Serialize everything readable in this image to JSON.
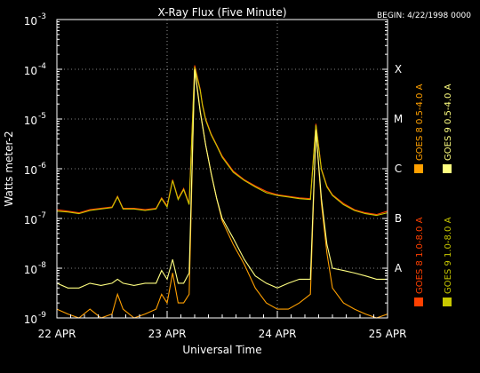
{
  "chart_data": {
    "type": "line",
    "title": "X-Ray Flux (Five Minute)",
    "begin_label": "BEGIN: 4/22/1998 0000",
    "ylabel": "Watts meter-2",
    "xlabel": "Universal Time",
    "y_scale": "log",
    "ylim": [
      1e-09,
      0.001
    ],
    "xlim": [
      0,
      3
    ],
    "y_ticks": [
      {
        "value": 0.001,
        "base": "10",
        "exp": "-3"
      },
      {
        "value": 0.0001,
        "base": "10",
        "exp": "-4"
      },
      {
        "value": 1e-05,
        "base": "10",
        "exp": "-5"
      },
      {
        "value": 1e-06,
        "base": "10",
        "exp": "-6"
      },
      {
        "value": 1e-07,
        "base": "10",
        "exp": "-7"
      },
      {
        "value": 1e-08,
        "base": "10",
        "exp": "-8"
      },
      {
        "value": 1e-09,
        "base": "10",
        "exp": "-9"
      }
    ],
    "x_ticks": [
      {
        "value": 0,
        "label": "22 APR"
      },
      {
        "value": 1,
        "label": "23 APR"
      },
      {
        "value": 2,
        "label": "24 APR"
      },
      {
        "value": 3,
        "label": "25 APR"
      }
    ],
    "flare_classes": [
      {
        "label": "X",
        "value": 0.0001
      },
      {
        "label": "M",
        "value": 1e-05
      },
      {
        "label": "C",
        "value": 1e-06
      },
      {
        "label": "B",
        "value": 1e-07
      },
      {
        "label": "A",
        "value": 1e-08
      }
    ],
    "grid": true,
    "legend_position": "right",
    "series": [
      {
        "name": "GOES 8 1.0-8.0 A",
        "color": "#ff4000",
        "x": [
          0,
          0.1,
          0.2,
          0.3,
          0.4,
          0.5,
          0.55,
          0.6,
          0.7,
          0.8,
          0.9,
          0.95,
          1.0,
          1.05,
          1.1,
          1.15,
          1.2,
          1.25,
          1.3,
          1.32,
          1.35,
          1.4,
          1.45,
          1.5,
          1.6,
          1.7,
          1.8,
          1.9,
          2.0,
          2.1,
          2.2,
          2.3,
          2.35,
          2.4,
          2.45,
          2.5,
          2.6,
          2.7,
          2.8,
          2.9,
          3.0
        ],
        "y": [
          1.5e-07,
          1.4e-07,
          1.3e-07,
          1.5e-07,
          1.6e-07,
          1.7e-07,
          2.8e-07,
          1.6e-07,
          1.6e-07,
          1.5e-07,
          1.6e-07,
          2.6e-07,
          1.8e-07,
          6e-07,
          2.5e-07,
          4e-07,
          2e-07,
          0.00012,
          4e-05,
          2e-05,
          1e-05,
          5e-06,
          3e-06,
          1.8e-06,
          9e-07,
          6e-07,
          4.5e-07,
          3.5e-07,
          3e-07,
          2.8e-07,
          2.6e-07,
          2.5e-07,
          8e-06,
          1e-06,
          4.5e-07,
          3e-07,
          2e-07,
          1.5e-07,
          1.3e-07,
          1.2e-07,
          1.4e-07
        ]
      },
      {
        "name": "GOES 8 0.5-4.0 A",
        "color": "#ffa000",
        "x": [
          0,
          0.1,
          0.2,
          0.3,
          0.4,
          0.5,
          0.55,
          0.6,
          0.7,
          0.8,
          0.9,
          0.95,
          1.0,
          1.05,
          1.1,
          1.15,
          1.2,
          1.25,
          1.3,
          1.35,
          1.4,
          1.45,
          1.5,
          1.6,
          1.7,
          1.8,
          1.9,
          2.0,
          2.1,
          2.2,
          2.3,
          2.35,
          2.4,
          2.45,
          2.5,
          2.6,
          2.7,
          2.8,
          2.9,
          3.0
        ],
        "y": [
          1.5e-09,
          1.2e-09,
          1e-09,
          1.5e-09,
          1e-09,
          1.2e-09,
          3e-09,
          1.5e-09,
          1e-09,
          1.2e-09,
          1.5e-09,
          3e-09,
          2e-09,
          8e-09,
          2e-09,
          2e-09,
          3e-09,
          0.00011,
          1.5e-05,
          3e-06,
          8e-07,
          2.5e-07,
          9e-08,
          3e-08,
          1.2e-08,
          4e-09,
          2e-09,
          1.5e-09,
          1.5e-09,
          2e-09,
          3e-09,
          6e-06,
          2e-07,
          2e-08,
          4e-09,
          2e-09,
          1.5e-09,
          1.2e-09,
          1e-09,
          1.2e-09
        ]
      },
      {
        "name": "GOES 9 1.0-8.0 A",
        "color": "#c8c800",
        "x": [
          0,
          0.1,
          0.2,
          0.3,
          0.4,
          0.5,
          0.55,
          0.6,
          0.7,
          0.8,
          0.9,
          0.95,
          1.0,
          1.05,
          1.1,
          1.15,
          1.2,
          1.25,
          1.3,
          1.32,
          1.35,
          1.4,
          1.45,
          1.5,
          1.6,
          1.7,
          1.8,
          1.9,
          2.0,
          2.1,
          2.2,
          2.3,
          2.35,
          2.4,
          2.45,
          2.5,
          2.6,
          2.7,
          2.8,
          2.9,
          3.0
        ],
        "y": [
          1.4e-07,
          1.35e-07,
          1.25e-07,
          1.45e-07,
          1.55e-07,
          1.65e-07,
          2.7e-07,
          1.55e-07,
          1.55e-07,
          1.45e-07,
          1.55e-07,
          2.5e-07,
          1.7e-07,
          5.8e-07,
          2.4e-07,
          3.8e-07,
          1.9e-07,
          0.00011,
          3.8e-05,
          1.9e-05,
          9.5e-06,
          4.8e-06,
          2.9e-06,
          1.7e-06,
          8.5e-07,
          5.8e-07,
          4.3e-07,
          3.3e-07,
          2.9e-07,
          2.7e-07,
          2.5e-07,
          2.4e-07,
          7.5e-06,
          9.5e-07,
          4.3e-07,
          2.9e-07,
          1.9e-07,
          1.45e-07,
          1.25e-07,
          1.15e-07,
          1.3e-07
        ]
      },
      {
        "name": "GOES 9 0.5-4.0 A",
        "color": "#ffff80",
        "x": [
          0,
          0.1,
          0.2,
          0.3,
          0.4,
          0.5,
          0.55,
          0.6,
          0.7,
          0.8,
          0.9,
          0.95,
          1.0,
          1.05,
          1.1,
          1.15,
          1.2,
          1.25,
          1.3,
          1.35,
          1.4,
          1.45,
          1.5,
          1.6,
          1.7,
          1.8,
          1.9,
          2.0,
          2.1,
          2.2,
          2.3,
          2.35,
          2.4,
          2.45,
          2.5,
          2.6,
          2.7,
          2.8,
          2.9,
          3.0
        ],
        "y": [
          5e-09,
          4e-09,
          4e-09,
          5e-09,
          4.5e-09,
          5e-09,
          6e-09,
          5e-09,
          4.5e-09,
          5e-09,
          5e-09,
          9e-09,
          6e-09,
          1.5e-08,
          5e-09,
          5e-09,
          8e-09,
          0.0001,
          1.4e-05,
          3e-06,
          8e-07,
          2.5e-07,
          1e-07,
          4e-08,
          1.5e-08,
          7e-09,
          5e-09,
          4e-09,
          5e-09,
          6e-09,
          6e-09,
          6e-06,
          2.5e-07,
          3e-08,
          1e-08,
          9e-09,
          8e-09,
          7e-09,
          6e-09,
          6e-09
        ]
      }
    ]
  }
}
